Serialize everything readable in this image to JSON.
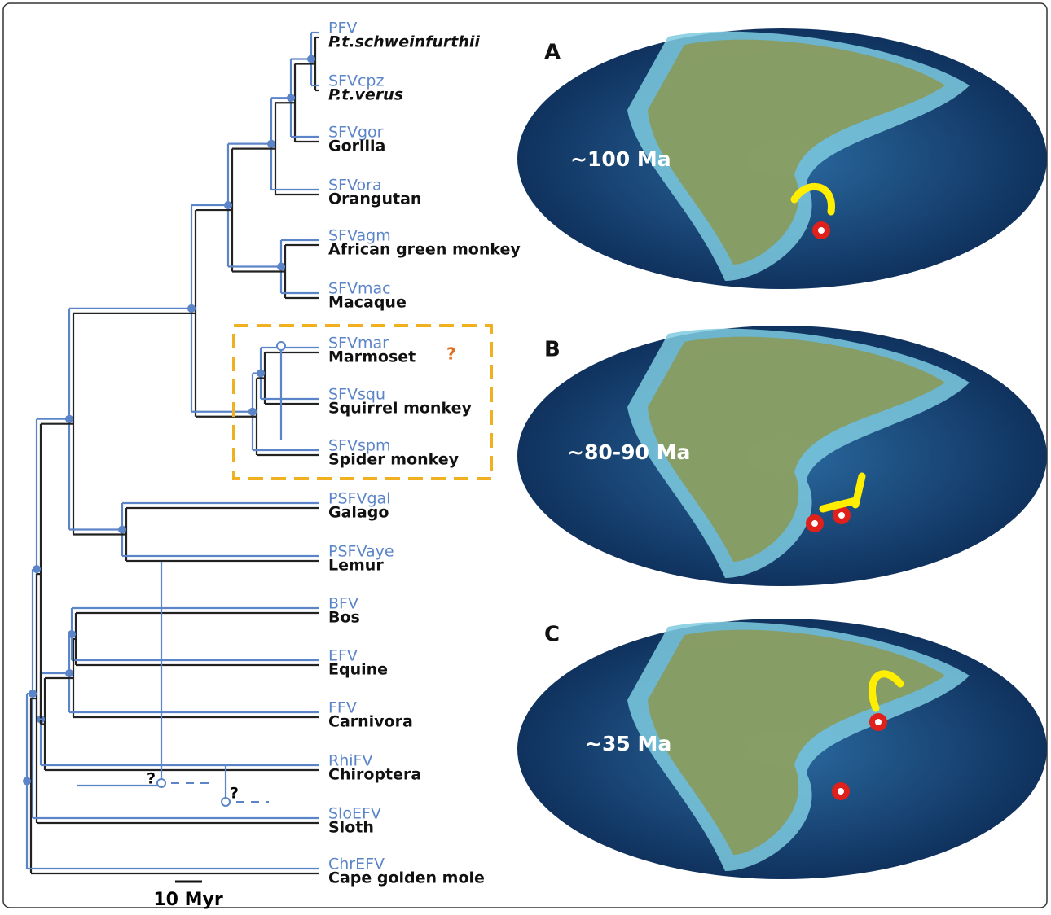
{
  "figure": {
    "leaves": [
      {
        "virus": "PFV",
        "host": "P.t.schweinfurthii"
      },
      {
        "virus": "SFVcpz",
        "host": "P.t.verus"
      },
      {
        "virus": "SFVgor",
        "host": "Gorilla"
      },
      {
        "virus": "SFVora",
        "host": "Orangutan"
      },
      {
        "virus": "SFVagm",
        "host": "African green monkey"
      },
      {
        "virus": "SFVmac",
        "host": "Macaque"
      },
      {
        "virus": "SFVmar",
        "host": "Marmoset"
      },
      {
        "virus": "SFVsqu",
        "host": "Squirrel monkey"
      },
      {
        "virus": "SFVspm",
        "host": "Spider monkey"
      },
      {
        "virus": "PSFVgal",
        "host": "Galago"
      },
      {
        "virus": "PSFVaye",
        "host": "Lemur"
      },
      {
        "virus": "BFV",
        "host": "Bos"
      },
      {
        "virus": "EFV",
        "host": "Equine"
      },
      {
        "virus": "FFV",
        "host": "Carnivora"
      },
      {
        "virus": "RhiFV",
        "host": "Chiroptera"
      },
      {
        "virus": "SloEFV",
        "host": "Sloth"
      },
      {
        "virus": "ChrEFV",
        "host": "Cape golden mole"
      }
    ],
    "question_marks": [
      "?",
      "?",
      "?"
    ],
    "scale_bar": "10 Myr",
    "maps": [
      {
        "panel": "A",
        "age": "~100 Ma"
      },
      {
        "panel": "B",
        "age": "~80-90 Ma"
      },
      {
        "panel": "C",
        "age": "~35 Ma"
      }
    ]
  }
}
